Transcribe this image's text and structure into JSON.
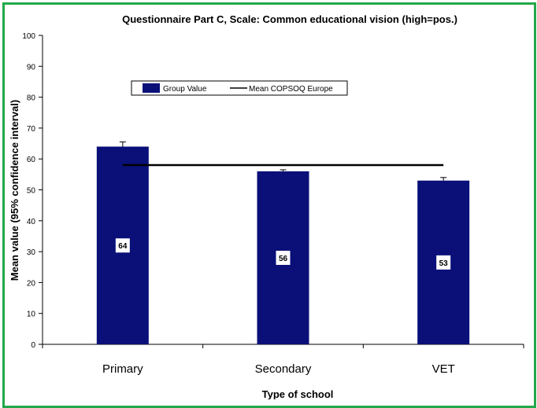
{
  "chart_data": {
    "type": "bar",
    "title": "Questionnaire Part C, Scale: Common educational vision (high=pos.)",
    "xlabel": "Type of school",
    "ylabel": "Mean value (95%  confidence interval)",
    "categories": [
      "Primary",
      "Secondary",
      "VET"
    ],
    "series": [
      {
        "name": "Group Value",
        "values": [
          64,
          56,
          53
        ],
        "data_labels": [
          "64",
          "56",
          "53"
        ],
        "error_upper": [
          65.5,
          56.5,
          54
        ],
        "color": "#0a1078"
      },
      {
        "name": "Mean COPSOQ Europe",
        "type": "line",
        "values": [
          58,
          58,
          58
        ],
        "color": "#000000"
      }
    ],
    "ylim": [
      0,
      100
    ],
    "yticks": [
      0,
      10,
      20,
      30,
      40,
      50,
      60,
      70,
      80,
      90,
      100
    ],
    "grid": false,
    "legend_position": "top-left inside plot"
  },
  "colors": {
    "frame_border": "#22a84a",
    "bar": "#0a1078"
  }
}
